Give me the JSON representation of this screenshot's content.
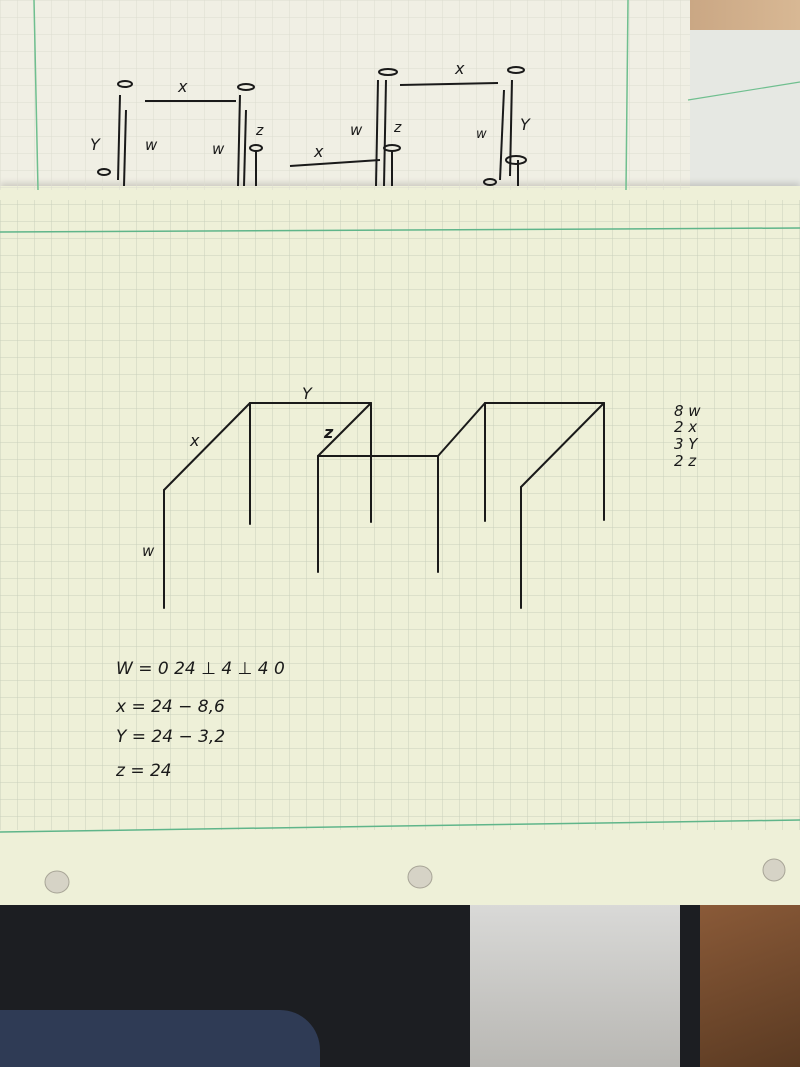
{
  "back_sheet_labels": {
    "x_left": "x",
    "x_right": "x",
    "x_middle": "x",
    "y_left": "Y",
    "y_right": "Y",
    "w_left": "w",
    "w_mid1": "w",
    "w_mid2": "w",
    "w_right": "w",
    "z_left": "z",
    "z_right": "z"
  },
  "front_sheet": {
    "label_y": "Y",
    "label_x": "x",
    "label_z": "z",
    "label_w": "w"
  },
  "counts": [
    "8 w",
    "2 x",
    "3 Y",
    "2 z"
  ],
  "equations": [
    "W = 0 24 ⊥ 4 ⊥ 4 0",
    "x = 24 − 8,6",
    "Y = 24 − 3,2",
    "z = 24"
  ],
  "colors": {
    "paper": "#eef0d8",
    "grid": "#c5cdb8",
    "margin_line": "#5fb58a",
    "ink": "#1a1a1a"
  }
}
